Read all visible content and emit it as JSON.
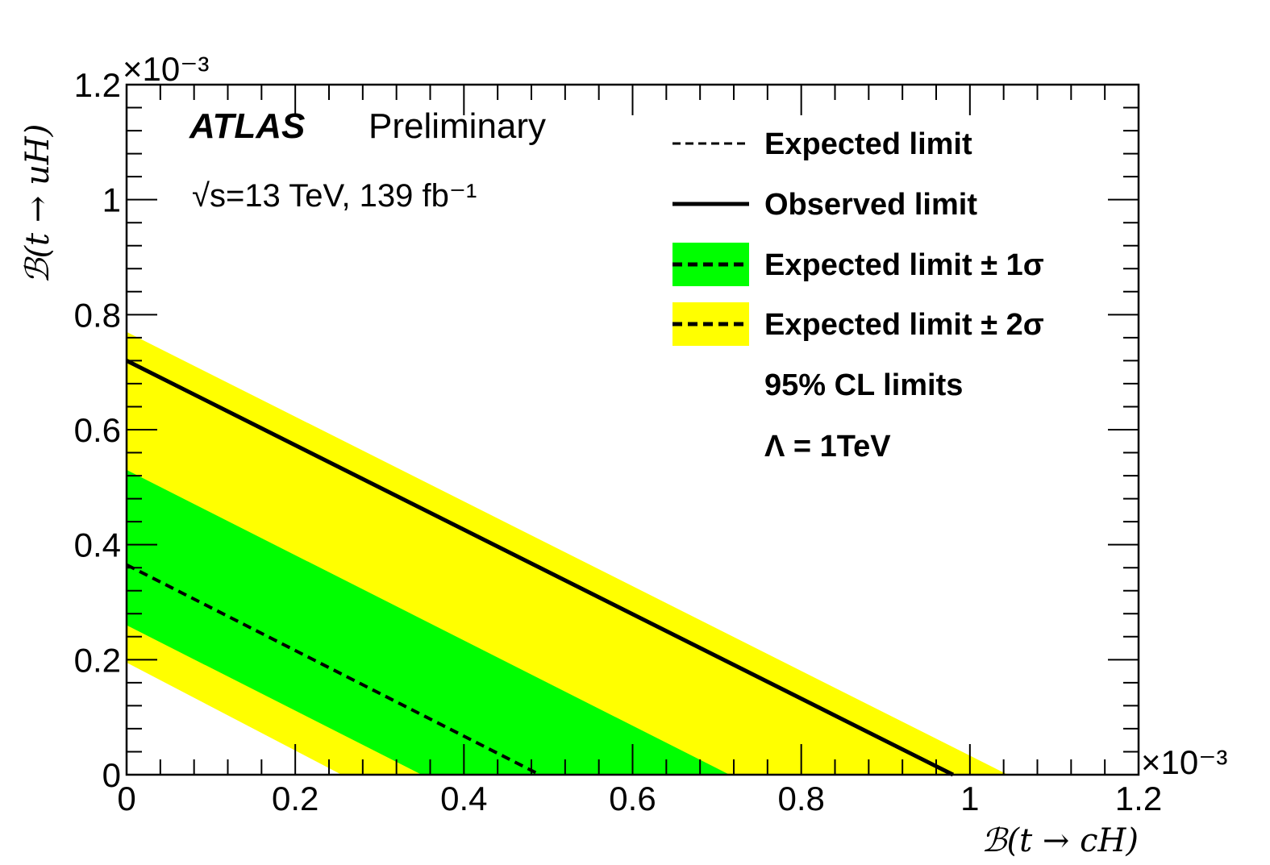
{
  "chart_data": {
    "type": "area",
    "xlabel": "ℬ(t → cH)",
    "ylabel": "ℬ(t → uH)",
    "x_exponent": "×10⁻³",
    "y_exponent": "×10⁻³",
    "xlim": [
      0,
      1.2
    ],
    "ylim": [
      0,
      1.2
    ],
    "x_ticks": [
      "0",
      "0.2",
      "0.4",
      "0.6",
      "0.8",
      "1",
      "1.2"
    ],
    "y_ticks": [
      "0",
      "0.2",
      "0.4",
      "0.6",
      "0.8",
      "1",
      "1.2"
    ],
    "grid": false,
    "series": [
      {
        "name": "Expected limit",
        "style": "dashed",
        "color": "#000000",
        "points": [
          [
            0,
            0.365
          ],
          [
            0.49,
            0
          ]
        ]
      },
      {
        "name": "Observed limit",
        "style": "solid",
        "color": "#000000",
        "points": [
          [
            0,
            0.72
          ],
          [
            0.98,
            0
          ]
        ]
      },
      {
        "name": "Expected limit ± 1σ",
        "style": "band",
        "color": "#00ff00",
        "upper": [
          [
            0,
            0.53
          ],
          [
            0.715,
            0
          ]
        ],
        "lower": [
          [
            0,
            0.26
          ],
          [
            0.35,
            0
          ]
        ]
      },
      {
        "name": "Expected limit ± 2σ",
        "style": "band",
        "color": "#ffff00",
        "upper": [
          [
            0,
            0.77
          ],
          [
            1.045,
            0
          ]
        ],
        "lower": [
          [
            0,
            0.195
          ],
          [
            0.255,
            0
          ]
        ]
      }
    ],
    "legend": {
      "placement": "top-right",
      "entries": [
        {
          "label": "Expected limit",
          "kind": "dashed"
        },
        {
          "label": "Observed limit",
          "kind": "solid"
        },
        {
          "label": "Expected limit ± 1σ",
          "kind": "band-green"
        },
        {
          "label": "Expected limit ± 2σ",
          "kind": "band-yellow"
        }
      ],
      "notes": [
        "95% CL limits",
        "Λ = 1TeV"
      ]
    }
  },
  "annotations": {
    "experiment": "ATLAS",
    "status": "Preliminary",
    "energy_lumi": "√s=13 TeV, 139 fb⁻¹"
  }
}
